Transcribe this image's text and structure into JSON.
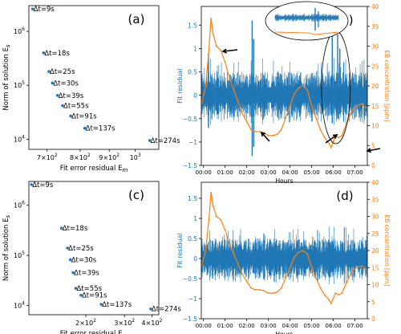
{
  "chart_data": [
    {
      "panel": "(a)",
      "type": "scatter",
      "xlabel": "Fit error residual E_m",
      "ylabel": "Norm of solution E_s",
      "xscale": "log",
      "yscale": "log",
      "xlim": [
        650,
        1100
      ],
      "ylim": [
        6500,
        3000000
      ],
      "xticks": [
        {
          "v": 700,
          "m": "7",
          "e": "2"
        },
        {
          "v": 800,
          "m": "8",
          "e": "2"
        },
        {
          "v": 900,
          "m": "9",
          "e": "2"
        },
        {
          "v": 1000,
          "m": "",
          "e": "3"
        }
      ],
      "yticks": [
        {
          "v": 10000,
          "e": "4"
        },
        {
          "v": 100000,
          "e": "5"
        },
        {
          "v": 1000000,
          "e": "6"
        }
      ],
      "points": [
        {
          "label": "Δt=9s",
          "x": 660,
          "y": 2600000
        },
        {
          "label": "Δt=18s",
          "x": 690,
          "y": 400000
        },
        {
          "label": "Δt=25s",
          "x": 705,
          "y": 180000
        },
        {
          "label": "Δt=30s",
          "x": 715,
          "y": 110000
        },
        {
          "label": "Δt=39s",
          "x": 730,
          "y": 65000
        },
        {
          "label": "Δt=55s",
          "x": 745,
          "y": 42000
        },
        {
          "label": "Δt=91s",
          "x": 770,
          "y": 27000
        },
        {
          "label": "Δt=137s",
          "x": 815,
          "y": 16000
        },
        {
          "label": "Δt=274s",
          "x": 1060,
          "y": 9500
        }
      ],
      "color": "#1f77b4"
    },
    {
      "panel": "(b)",
      "type": "line",
      "xlabel": "Hours",
      "ylabel": "Fit residual",
      "y2label": "EB concentration [ppm]",
      "xlim": [
        0,
        7.67
      ],
      "ylim": [
        -1.5,
        1.9
      ],
      "y2lim": [
        0,
        40
      ],
      "xticks": [
        "00:00",
        "01:00",
        "02:00",
        "03:00",
        "04:00",
        "05:00",
        "06:00",
        "07:00"
      ],
      "yticks": [
        -1.5,
        -1.0,
        -0.5,
        0.0,
        0.5,
        1.0,
        1.5
      ],
      "y2ticks": [
        0,
        5,
        10,
        15,
        20,
        25,
        30,
        35,
        40
      ],
      "residual_color": "#1f77b4",
      "concentration_color": "#ff7f0e",
      "spikes": [
        {
          "x": 0.33,
          "lo": -0.7,
          "hi": 0.9
        },
        {
          "x": 2.35,
          "lo": -1.3,
          "hi": 1.6
        },
        {
          "x": 2.42,
          "lo": -1.1,
          "hi": 1.2
        },
        {
          "x": 6.05,
          "lo": -0.6,
          "hi": 1.5
        },
        {
          "x": 6.3,
          "lo": -0.5,
          "hi": 1.3
        },
        {
          "x": 6.4,
          "lo": -0.4,
          "hi": 1.0
        }
      ],
      "concentration": {
        "x": [
          0,
          0.2,
          0.35,
          0.45,
          0.55,
          0.7,
          0.9,
          1.1,
          1.3,
          1.5,
          1.7,
          1.9,
          2.1,
          2.3,
          2.5,
          2.7,
          2.9,
          3.1,
          3.3,
          3.5,
          3.7,
          3.9,
          4.1,
          4.3,
          4.5,
          4.7,
          4.9,
          5.1,
          5.3,
          5.5,
          5.7,
          5.9,
          6.0,
          6.1,
          6.2,
          6.35,
          6.5,
          6.6,
          6.75,
          6.9,
          7.05,
          7.2,
          7.4,
          7.6
        ],
        "y": [
          15,
          20,
          29,
          37,
          33,
          30,
          29,
          26,
          22,
          19,
          16,
          13,
          11,
          9,
          8.5,
          8.5,
          8.2,
          7.5,
          7.5,
          7.8,
          9,
          12,
          15,
          18,
          19.5,
          20,
          19,
          15,
          12,
          9,
          7,
          5.5,
          4.5,
          6,
          7.5,
          7,
          7.5,
          9,
          11,
          13,
          14.5,
          15,
          15.5,
          14.5
        ]
      }
    },
    {
      "panel": "(c)",
      "type": "scatter",
      "xlabel": "Fit error residual E_m",
      "ylabel": "Norm of solution E_s",
      "xscale": "log",
      "yscale": "log",
      "xlim": [
        110,
        430
      ],
      "ylim": [
        6500,
        3000000
      ],
      "xticks": [
        {
          "v": 200,
          "m": "2",
          "e": "2"
        },
        {
          "v": 300,
          "m": "3",
          "e": "2"
        },
        {
          "v": 400,
          "m": "4",
          "e": "2"
        }
      ],
      "yticks": [
        {
          "v": 10000,
          "e": "4"
        },
        {
          "v": 100000,
          "e": "5"
        },
        {
          "v": 1000000,
          "e": "6"
        }
      ],
      "points": [
        {
          "label": "Δt=9s",
          "x": 113,
          "y": 2600000
        },
        {
          "label": "Δt=18s",
          "x": 155,
          "y": 350000
        },
        {
          "label": "Δt=25s",
          "x": 165,
          "y": 140000
        },
        {
          "label": "Δt=30s",
          "x": 170,
          "y": 82000
        },
        {
          "label": "Δt=39s",
          "x": 175,
          "y": 45000
        },
        {
          "label": "Δt=55s",
          "x": 180,
          "y": 22000
        },
        {
          "label": "Δt=91s",
          "x": 190,
          "y": 16000
        },
        {
          "label": "Δt=137s",
          "x": 235,
          "y": 10500
        },
        {
          "label": "Δt=274s",
          "x": 395,
          "y": 8500
        }
      ],
      "color": "#1f77b4"
    },
    {
      "panel": "(d)",
      "type": "line",
      "xlabel": "Hours",
      "ylabel": "Fit residual",
      "y2label": "EB concentration [ppm]",
      "xlim": [
        0,
        7.67
      ],
      "ylim": [
        -1.5,
        1.9
      ],
      "y2lim": [
        0,
        40
      ],
      "xticks": [
        "00:00",
        "01:00",
        "02:00",
        "03:00",
        "04:00",
        "05:00",
        "06:00",
        "07:00"
      ],
      "yticks": [
        -1.5,
        -1.0,
        -0.5,
        0.0,
        0.5,
        1.0,
        1.5
      ],
      "y2ticks": [
        0,
        5,
        10,
        15,
        20,
        25,
        30,
        35,
        40
      ],
      "residual_color": "#1f77b4",
      "concentration_color": "#ff7f0e",
      "spikes": [],
      "concentration": {
        "x": [
          0,
          0.2,
          0.35,
          0.45,
          0.55,
          0.7,
          0.9,
          1.1,
          1.3,
          1.5,
          1.7,
          1.9,
          2.1,
          2.3,
          2.5,
          2.7,
          2.9,
          3.1,
          3.3,
          3.5,
          3.7,
          3.9,
          4.1,
          4.3,
          4.5,
          4.7,
          4.9,
          5.1,
          5.3,
          5.5,
          5.7,
          5.9,
          6.0,
          6.1,
          6.2,
          6.35,
          6.5,
          6.6,
          6.75,
          6.9,
          7.05,
          7.2,
          7.4,
          7.6
        ],
        "y": [
          15,
          20,
          29,
          37,
          33,
          30,
          29,
          26,
          22,
          19,
          16,
          13,
          11,
          9,
          8.5,
          8.5,
          8.2,
          7.5,
          7.5,
          7.8,
          9,
          12,
          15,
          18,
          19.5,
          20,
          19,
          15,
          12,
          9,
          7,
          5.5,
          4.5,
          6,
          7.5,
          7,
          7.5,
          9,
          11,
          13,
          14.5,
          15,
          15.5,
          14.5
        ]
      }
    }
  ]
}
